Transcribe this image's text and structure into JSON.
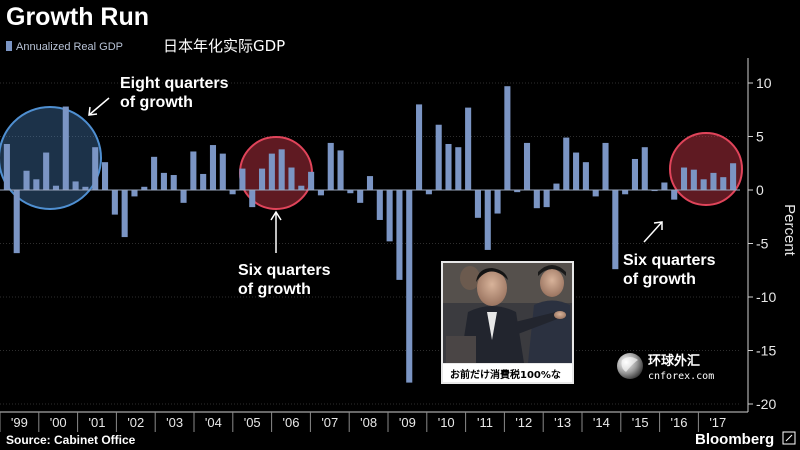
{
  "chart_data": {
    "type": "bar",
    "title": "Growth Run",
    "legend": [
      "Annualized Real GDP",
      "日本年化实际GDP"
    ],
    "ylabel": "Percent",
    "ylim": [
      -21,
      12
    ],
    "yticks": [
      10,
      5,
      0,
      -5,
      -10,
      -15,
      -20
    ],
    "x_tick_labels": [
      "'99",
      "'00",
      "'01",
      "'02",
      "'03",
      "'04",
      "'05",
      "'06",
      "'07",
      "'08",
      "'09",
      "'10",
      "'11",
      "'12",
      "'13",
      "'14",
      "'15",
      "'16",
      "'17"
    ],
    "grid": true,
    "series": [
      {
        "name": "Annualized Real GDP",
        "values": [
          4.3,
          -5.9,
          1.8,
          1.0,
          3.5,
          0.4,
          7.8,
          0.8,
          0.3,
          4.0,
          2.6,
          -2.3,
          -4.4,
          -0.6,
          0.3,
          3.1,
          1.6,
          1.4,
          -1.2,
          3.6,
          1.5,
          4.2,
          3.4,
          -0.4,
          2.0,
          -1.6,
          2.0,
          3.4,
          3.8,
          2.1,
          0.4,
          1.7,
          -0.5,
          4.4,
          3.7,
          -0.3,
          -1.2,
          1.3,
          -2.8,
          -4.8,
          -8.4,
          -18.0,
          8.0,
          -0.4,
          6.1,
          4.3,
          4.0,
          7.7,
          -2.6,
          -5.6,
          -2.2,
          9.7,
          -0.2,
          4.4,
          -1.7,
          -1.6,
          0.6,
          4.9,
          3.5,
          2.6,
          -0.6,
          4.4,
          -7.4,
          -0.4,
          2.9,
          4.0,
          -0.1,
          0.7,
          -0.9,
          2.1,
          1.9,
          1.0,
          1.6,
          1.2,
          2.5
        ],
        "color": "#7b95c4"
      }
    ],
    "annotations": [
      {
        "text": [
          "Eight quarters",
          "of growth"
        ]
      },
      {
        "text": [
          "Six quarters",
          "of growth"
        ]
      },
      {
        "text": [
          "Six quarters",
          "of growth"
        ]
      }
    ],
    "highlight_colors": {
      "blue_circle": "#4f8fd1",
      "red_circle": "#d23a4b"
    }
  },
  "source": "Source: Cabinet Office",
  "brand": "Bloomberg",
  "photo_caption": "お前だけ消費税100%な",
  "watermark": {
    "cn": "环球外汇",
    "en": "cnforex.com"
  }
}
